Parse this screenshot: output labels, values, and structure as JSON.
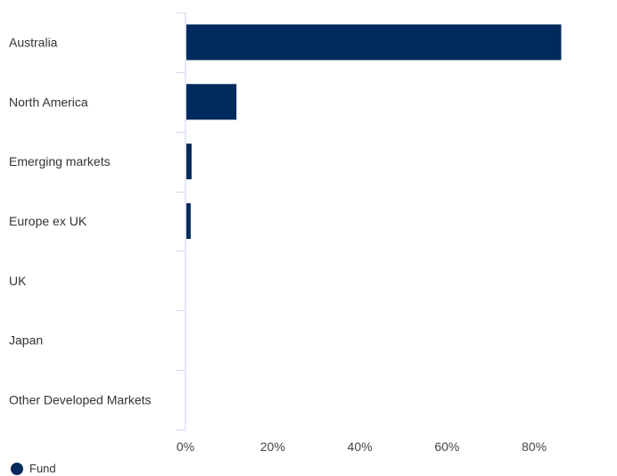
{
  "chart_data": {
    "type": "bar",
    "orientation": "horizontal",
    "categories": [
      "Australia",
      "North America",
      "Emerging markets",
      "Europe ex UK",
      "UK",
      "Japan",
      "Other Developed Markets"
    ],
    "series": [
      {
        "name": "Fund",
        "values": [
          86.0,
          11.5,
          1.2,
          1.0,
          0.0,
          0.0,
          0.0
        ]
      }
    ],
    "x_ticks": [
      "0%",
      "20%",
      "40%",
      "60%",
      "80%"
    ],
    "x_tick_values": [
      0,
      20,
      40,
      60,
      80
    ],
    "xlim": [
      0,
      99
    ],
    "grid": false,
    "legend_position": "bottom-left",
    "colors": {
      "bar": "#002b5c",
      "axis": "#ccd6eb"
    }
  }
}
